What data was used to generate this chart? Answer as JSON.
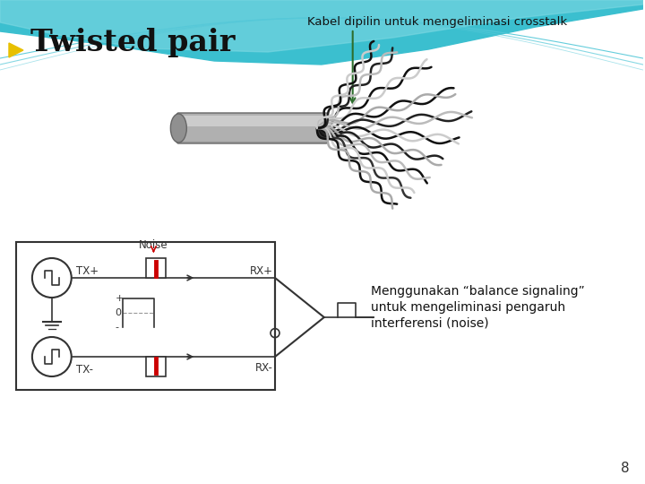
{
  "title": "Twisted pair",
  "arrow_label": "Kabel dipilin untuk mengeliminasi crosstalk",
  "balance_text_line1": "Menggunakan “balance signaling”",
  "balance_text_line2": "untuk mengeliminasi pengaruh",
  "balance_text_line3": "interferensi (noise)",
  "noise_label": "Noise",
  "tx_plus": "TX+",
  "tx_minus": "TX-",
  "rx_plus": "RX+",
  "rx_minus": "RX-",
  "page_number": "8",
  "bg_color": "#ffffff",
  "teal_dark": "#3bbfcf",
  "teal_light": "#7dd8e2",
  "teal_line": "#55c8d8",
  "title_color": "#111111",
  "text_color": "#111111",
  "arrow_color": "#2d6e2d",
  "noise_color": "#cc0000",
  "diagram_color": "#333333",
  "bullet_color": "#e8c000"
}
